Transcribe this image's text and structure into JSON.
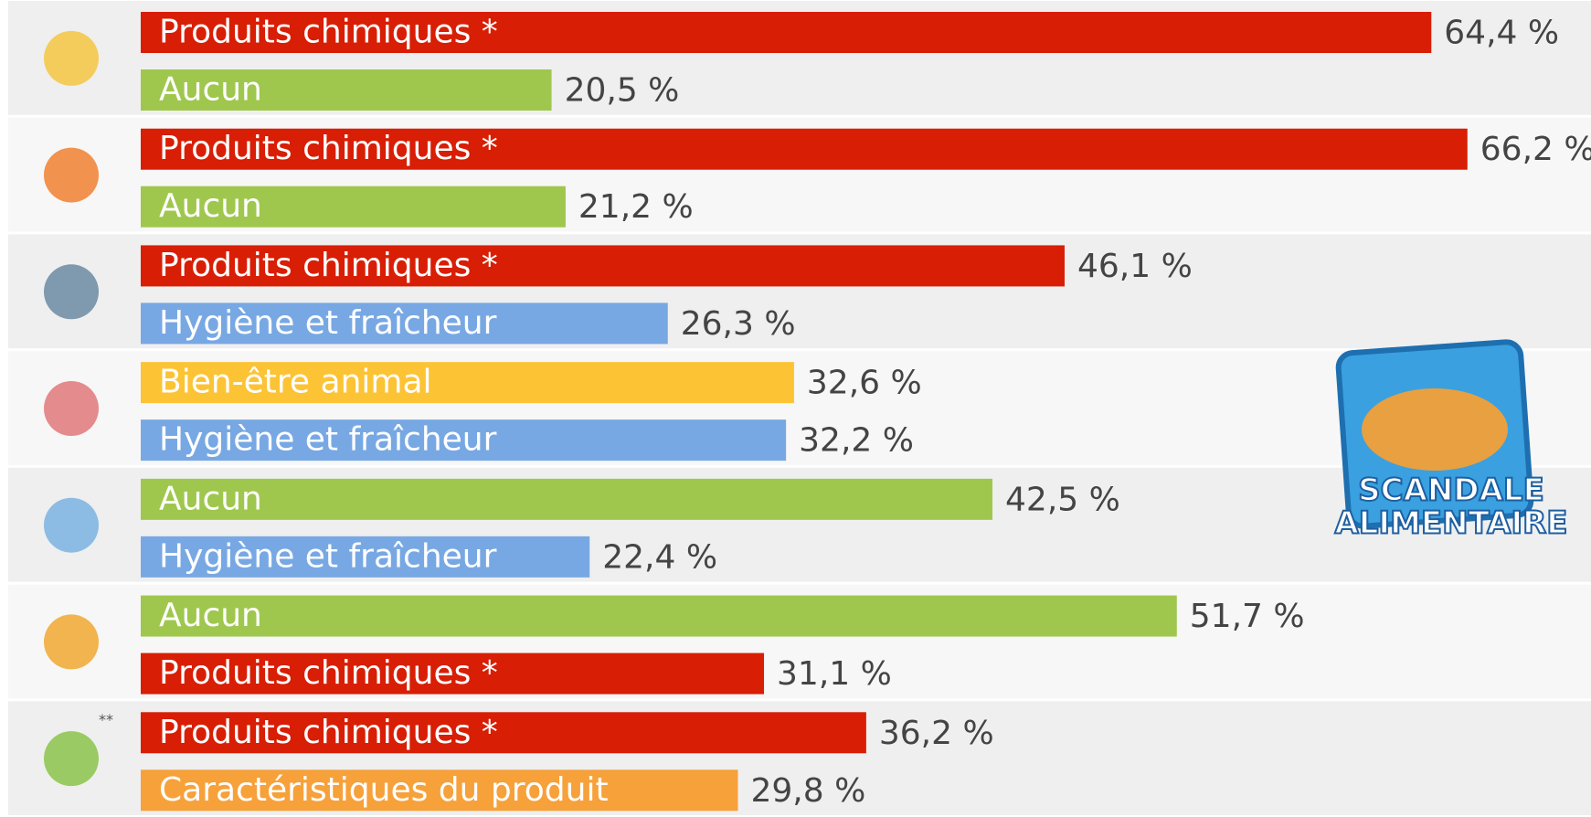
{
  "chart_data": {
    "type": "bar",
    "orientation": "horizontal",
    "note_marker": "**",
    "logo": [
      "SCANDALE",
      "ALIMENTAIRE"
    ],
    "groups": [
      {
        "bars": [
          {
            "label": "Produits chimiques *",
            "value": 64.4,
            "value_label": "64,4 %",
            "color": "#d81e05"
          },
          {
            "label": "Aucun",
            "value": 20.5,
            "value_label": "20,5 %",
            "color": "#9fc74e"
          }
        ]
      },
      {
        "bars": [
          {
            "label": "Produits chimiques *",
            "value": 66.2,
            "value_label": "66,2 %",
            "color": "#d81e05"
          },
          {
            "label": "Aucun",
            "value": 21.2,
            "value_label": "21,2 %",
            "color": "#9fc74e"
          }
        ]
      },
      {
        "bars": [
          {
            "label": "Produits chimiques *",
            "value": 46.1,
            "value_label": "46,1 %",
            "color": "#d81e05"
          },
          {
            "label": "Hygiène et fraîcheur",
            "value": 26.3,
            "value_label": "26,3 %",
            "color": "#78a8e3"
          }
        ]
      },
      {
        "bars": [
          {
            "label": "Bien-être animal",
            "value": 32.6,
            "value_label": "32,6 %",
            "color": "#fcc335"
          },
          {
            "label": "Hygiène et fraîcheur",
            "value": 32.2,
            "value_label": "32,2 %",
            "color": "#78a8e3"
          }
        ]
      },
      {
        "bars": [
          {
            "label": "Aucun",
            "value": 42.5,
            "value_label": "42,5 %",
            "color": "#9fc74e"
          },
          {
            "label": "Hygiène et fraîcheur",
            "value": 22.4,
            "value_label": "22,4 %",
            "color": "#78a8e3"
          }
        ]
      },
      {
        "bars": [
          {
            "label": "Aucun",
            "value": 51.7,
            "value_label": "51,7 %",
            "color": "#9fc74e"
          },
          {
            "label": "Produits chimiques *",
            "value": 31.1,
            "value_label": "31,1 %",
            "color": "#d81e05"
          }
        ]
      },
      {
        "bars": [
          {
            "label": "Produits chimiques *",
            "value": 36.2,
            "value_label": "36,2 %",
            "color": "#d81e05"
          },
          {
            "label": "Caractéristiques du produit",
            "value": 29.8,
            "value_label": "29,8 %",
            "color": "#f7a13a"
          }
        ]
      }
    ]
  }
}
